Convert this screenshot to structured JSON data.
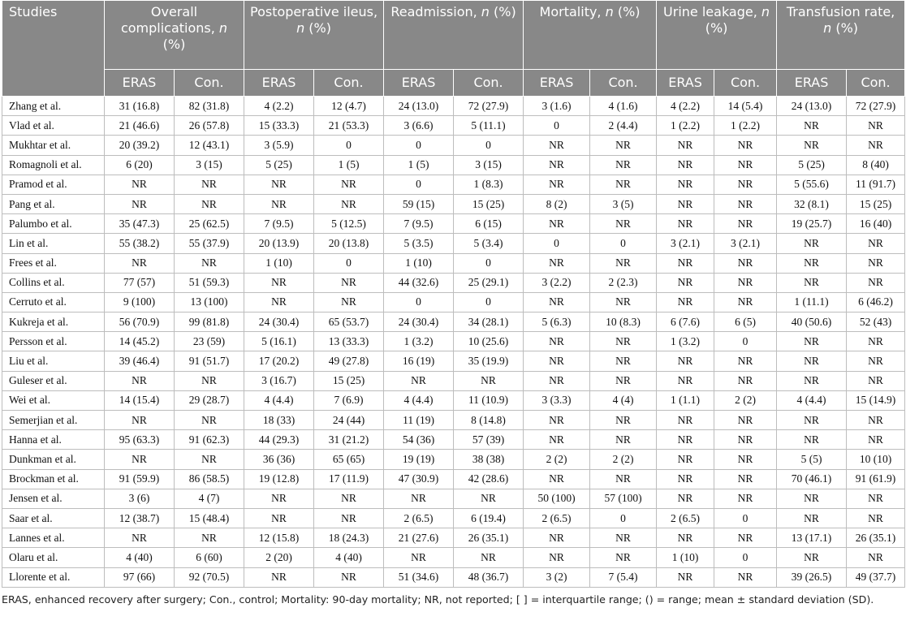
{
  "header": {
    "studies": "Studies",
    "groups": [
      {
        "pre": "Overall complications, ",
        "n": "n",
        "post": " (%)"
      },
      {
        "pre": "Postoperative ileus, ",
        "n": "n",
        "post": " (%)"
      },
      {
        "pre": "Readmission, ",
        "n": "n",
        "post": " (%)"
      },
      {
        "pre": "Mortality, ",
        "n": "n",
        "post": " (%)"
      },
      {
        "pre": "Urine leakage, ",
        "n": "n",
        "post": " (%)"
      },
      {
        "pre": "Transfusion rate, ",
        "n": "n",
        "post": " (%)"
      }
    ],
    "eras": "ERAS",
    "con": "Con."
  },
  "rows": [
    [
      "Zhang et al.",
      "31 (16.8)",
      "82 (31.8)",
      "4 (2.2)",
      "12 (4.7)",
      "24 (13.0)",
      "72 (27.9)",
      "3 (1.6)",
      "4 (1.6)",
      "4 (2.2)",
      "14 (5.4)",
      "24 (13.0)",
      "72 (27.9)"
    ],
    [
      "Vlad et al.",
      "21 (46.6)",
      "26 (57.8)",
      "15 (33.3)",
      "21 (53.3)",
      "3 (6.6)",
      "5 (11.1)",
      "0",
      "2 (4.4)",
      "1 (2.2)",
      "1 (2.2)",
      "NR",
      "NR"
    ],
    [
      "Mukhtar et al.",
      "20 (39.2)",
      "12 (43.1)",
      "3 (5.9)",
      "0",
      "0",
      "0",
      "NR",
      "NR",
      "NR",
      "NR",
      "NR",
      "NR"
    ],
    [
      "Romagnoli et al.",
      "6 (20)",
      "3 (15)",
      "5 (25)",
      "1 (5)",
      "1 (5)",
      "3 (15)",
      "NR",
      "NR",
      "NR",
      "NR",
      "5 (25)",
      "8 (40)"
    ],
    [
      "Pramod et al.",
      "NR",
      "NR",
      "NR",
      "NR",
      "0",
      "1 (8.3)",
      "NR",
      "NR",
      "NR",
      "NR",
      "5 (55.6)",
      "11 (91.7)"
    ],
    [
      "Pang et al.",
      "NR",
      "NR",
      "NR",
      "NR",
      "59 (15)",
      "15 (25)",
      "8 (2)",
      "3 (5)",
      "NR",
      "NR",
      "32 (8.1)",
      "15 (25)"
    ],
    [
      "Palumbo et al.",
      "35 (47.3)",
      "25 (62.5)",
      "7 (9.5)",
      "5 (12.5)",
      "7 (9.5)",
      "6 (15)",
      "NR",
      "NR",
      "NR",
      "NR",
      "19 (25.7)",
      "16 (40)"
    ],
    [
      "Lin et al.",
      "55 (38.2)",
      "55 (37.9)",
      "20 (13.9)",
      "20 (13.8)",
      "5 (3.5)",
      "5 (3.4)",
      "0",
      "0",
      "3 (2.1)",
      "3 (2.1)",
      "NR",
      "NR"
    ],
    [
      "Frees et al.",
      "NR",
      "NR",
      "1 (10)",
      "0",
      "1 (10)",
      "0",
      "NR",
      "NR",
      "NR",
      "NR",
      "NR",
      "NR"
    ],
    [
      "Collins et al.",
      "77 (57)",
      "51 (59.3)",
      "NR",
      "NR",
      "44 (32.6)",
      "25 (29.1)",
      "3 (2.2)",
      "2 (2.3)",
      "NR",
      "NR",
      "NR",
      "NR"
    ],
    [
      "Cerruto et al.",
      "9 (100)",
      "13 (100)",
      "NR",
      "NR",
      "0",
      "0",
      "NR",
      "NR",
      "NR",
      "NR",
      "1 (11.1)",
      "6 (46.2)"
    ],
    [
      "Kukreja et al.",
      "56 (70.9)",
      "99 (81.8)",
      "24 (30.4)",
      "65 (53.7)",
      "24 (30.4)",
      "34 (28.1)",
      "5 (6.3)",
      "10 (8.3)",
      "6 (7.6)",
      "6 (5)",
      "40 (50.6)",
      "52 (43)"
    ],
    [
      "Persson et al.",
      "14 (45.2)",
      "23 (59)",
      "5 (16.1)",
      "13 (33.3)",
      "1 (3.2)",
      "10 (25.6)",
      "NR",
      "NR",
      "1 (3.2)",
      "0",
      "NR",
      "NR"
    ],
    [
      "Liu et al.",
      "39 (46.4)",
      "91 (51.7)",
      "17 (20.2)",
      "49 (27.8)",
      "16 (19)",
      "35 (19.9)",
      "NR",
      "NR",
      "NR",
      "NR",
      "NR",
      "NR"
    ],
    [
      "Guleser et al.",
      "NR",
      "NR",
      "3 (16.7)",
      "15 (25)",
      "NR",
      "NR",
      "NR",
      "NR",
      "NR",
      "NR",
      "NR",
      "NR"
    ],
    [
      "Wei et al.",
      "14 (15.4)",
      "29 (28.7)",
      "4 (4.4)",
      "7 (6.9)",
      "4 (4.4)",
      "11 (10.9)",
      "3 (3.3)",
      "4 (4)",
      "1 (1.1)",
      "2 (2)",
      "4 (4.4)",
      "15 (14.9)"
    ],
    [
      "Semerjian et al.",
      "NR",
      "NR",
      "18 (33)",
      "24 (44)",
      "11 (19)",
      "8 (14.8)",
      "NR",
      "NR",
      "NR",
      "NR",
      "NR",
      "NR"
    ],
    [
      "Hanna et al.",
      "95 (63.3)",
      "91 (62.3)",
      "44 (29.3)",
      "31 (21.2)",
      "54 (36)",
      "57 (39)",
      "NR",
      "NR",
      "NR",
      "NR",
      "NR",
      "NR"
    ],
    [
      "Dunkman et al.",
      "NR",
      "NR",
      "36 (36)",
      "65 (65)",
      "19 (19)",
      "38 (38)",
      "2 (2)",
      "2 (2)",
      "NR",
      "NR",
      "5 (5)",
      "10 (10)"
    ],
    [
      "Brockman et al.",
      "91 (59.9)",
      "86 (58.5)",
      "19 (12.8)",
      "17 (11.9)",
      "47 (30.9)",
      "42 (28.6)",
      "NR",
      "NR",
      "NR",
      "NR",
      "70 (46.1)",
      "91 (61.9)"
    ],
    [
      "Jensen et al.",
      "3 (6)",
      "4 (7)",
      "NR",
      "NR",
      "NR",
      "NR",
      "50 (100)",
      "57 (100)",
      "NR",
      "NR",
      "NR",
      "NR"
    ],
    [
      "Saar et al.",
      "12 (38.7)",
      "15 (48.4)",
      "NR",
      "NR",
      "2 (6.5)",
      "6 (19.4)",
      "2 (6.5)",
      "0",
      "2 (6.5)",
      "0",
      "NR",
      "NR"
    ],
    [
      "Lannes et al.",
      "NR",
      "NR",
      "12 (15.8)",
      "18 (24.3)",
      "21 (27.6)",
      "26 (35.1)",
      "NR",
      "NR",
      "NR",
      "NR",
      "13 (17.1)",
      "26 (35.1)"
    ],
    [
      "Olaru et al.",
      "4 (40)",
      "6 (60)",
      "2 (20)",
      "4 (40)",
      "NR",
      "NR",
      "NR",
      "NR",
      "1 (10)",
      "0",
      "NR",
      "NR"
    ],
    [
      "Llorente et al.",
      "97 (66)",
      "92 (70.5)",
      "NR",
      "NR",
      "51 (34.6)",
      "48 (36.7)",
      "3 (2)",
      "7 (5.4)",
      "NR",
      "NR",
      "39 (26.5)",
      "49 (37.7)"
    ]
  ],
  "footnote": "ERAS, enhanced recovery after surgery; Con., control; Mortality: 90-day mortality; NR, not reported; [ ] = interquartile range; () = range; mean ± standard deviation (SD)."
}
